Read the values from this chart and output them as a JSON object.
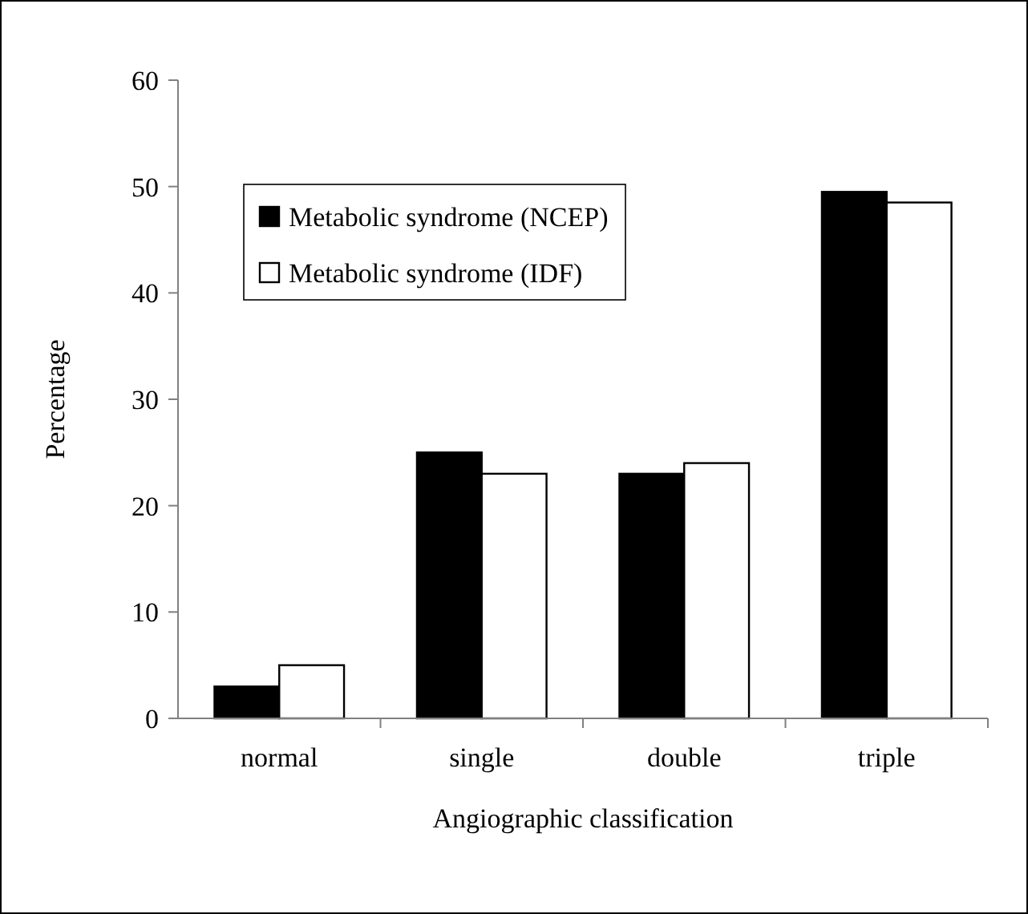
{
  "chart_data": {
    "type": "bar",
    "xlabel": "Angiographic classification",
    "ylabel": "Percentage",
    "categories": [
      "normal",
      "single",
      "double",
      "triple"
    ],
    "series": [
      {
        "name": "Metabolic syndrome (NCEP)",
        "color": "#000000",
        "values": [
          3,
          25,
          23,
          49.5
        ]
      },
      {
        "name": "Metabolic syndrome (IDF)",
        "color": "#ffffff",
        "values": [
          5,
          23,
          24,
          48.5
        ]
      }
    ],
    "ylim": [
      0,
      60
    ],
    "yticks": [
      0,
      10,
      20,
      30,
      40,
      50,
      60
    ],
    "grid": false,
    "legend": "top left"
  }
}
